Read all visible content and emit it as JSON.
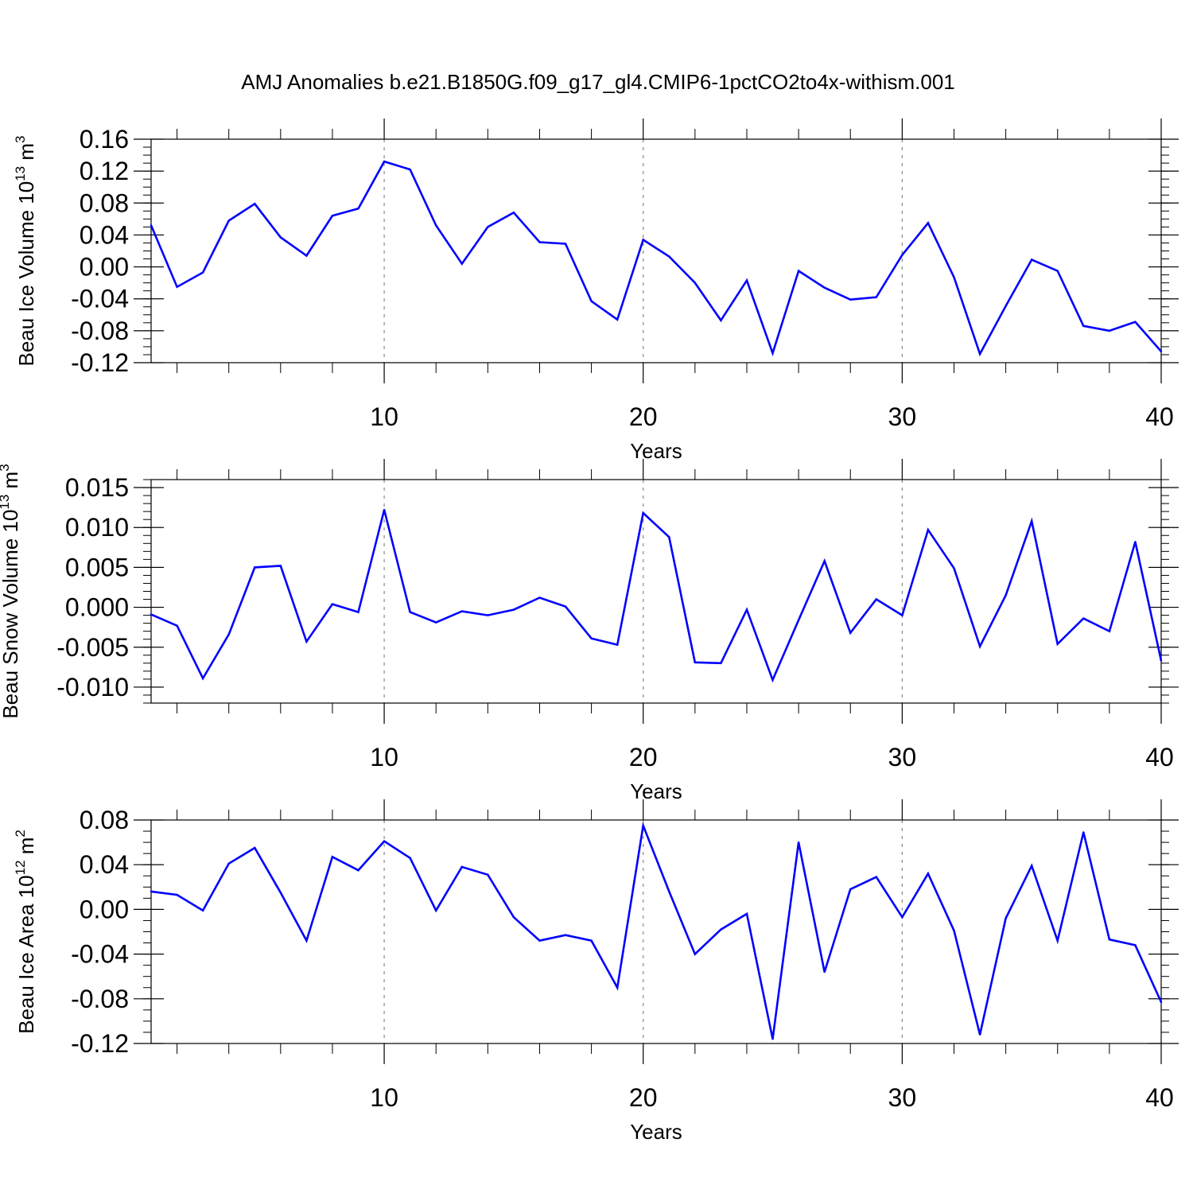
{
  "colors": {
    "line": "#0000ff",
    "axis": "#000000",
    "refline": "#888888"
  },
  "chart_data": [
    {
      "type": "line",
      "title": "AMJ Anomalies b.e21.B1850G.f09_g17_gl4.CMIP6-1pctCO2to4x-withism.001",
      "ylabel": {
        "text": "Beau Ice Volume 10",
        "exp": "13",
        "unit": " m",
        "unit_exp": "3"
      },
      "xlabel": "Years",
      "xlim": [
        1,
        40
      ],
      "ylim": [
        -0.12,
        0.16
      ],
      "yticks": [
        -0.12,
        -0.08,
        -0.04,
        0.0,
        0.04,
        0.08,
        0.12,
        0.16
      ],
      "ytick_labels": [
        "-0.12",
        "-0.08",
        "-0.04",
        "0.00",
        "0.04",
        "0.08",
        "0.12",
        "0.16"
      ],
      "yminor_step": 0.01,
      "xticks": [
        10,
        20,
        30,
        40
      ],
      "xtick_labels": [
        "10",
        "20",
        "30",
        "40"
      ],
      "xminor": [
        2,
        4,
        6,
        8,
        12,
        14,
        16,
        18,
        22,
        24,
        26,
        28,
        32,
        34,
        36,
        38
      ],
      "reflines": [
        10,
        20,
        30
      ],
      "x": [
        1,
        2,
        3,
        4,
        5,
        6,
        7,
        8,
        9,
        10,
        11,
        12,
        13,
        14,
        15,
        16,
        17,
        18,
        19,
        20,
        21,
        22,
        23,
        24,
        25,
        26,
        27,
        28,
        29,
        30,
        31,
        32,
        33,
        34,
        35,
        36,
        37,
        38,
        39,
        40
      ],
      "series": [
        {
          "values": [
            0.052,
            -0.025,
            -0.007,
            0.058,
            0.079,
            0.037,
            0.014,
            0.064,
            0.073,
            0.132,
            0.122,
            0.052,
            0.004,
            0.05,
            0.068,
            0.031,
            0.029,
            -0.043,
            -0.066,
            0.034,
            0.013,
            -0.02,
            -0.067,
            -0.017,
            -0.108,
            -0.005,
            -0.026,
            -0.041,
            -0.038,
            0.015,
            0.055,
            -0.013,
            -0.109,
            -0.049,
            0.009,
            -0.005,
            -0.074,
            -0.08,
            -0.069,
            -0.106
          ]
        }
      ]
    },
    {
      "type": "line",
      "ylabel": {
        "text": "Beau Snow Volume 10",
        "exp": "13",
        "unit": " m",
        "unit_exp": "3"
      },
      "xlabel": "Years",
      "xlim": [
        1,
        40
      ],
      "ylim": [
        -0.012,
        0.016
      ],
      "yticks": [
        -0.01,
        -0.005,
        0.0,
        0.005,
        0.01,
        0.015
      ],
      "ytick_labels": [
        "-0.010",
        "-0.005",
        "0.000",
        "0.005",
        "0.010",
        "0.015"
      ],
      "yminor_step": 0.001,
      "xticks": [
        10,
        20,
        30,
        40
      ],
      "xtick_labels": [
        "10",
        "20",
        "30",
        "40"
      ],
      "xminor": [
        2,
        4,
        6,
        8,
        12,
        14,
        16,
        18,
        22,
        24,
        26,
        28,
        32,
        34,
        36,
        38
      ],
      "reflines": [
        10,
        20,
        30
      ],
      "x": [
        1,
        2,
        3,
        4,
        5,
        6,
        7,
        8,
        9,
        10,
        11,
        12,
        13,
        14,
        15,
        16,
        17,
        18,
        19,
        20,
        21,
        22,
        23,
        24,
        25,
        26,
        27,
        28,
        29,
        30,
        31,
        32,
        33,
        34,
        35,
        36,
        37,
        38,
        39,
        40
      ],
      "series": [
        {
          "values": [
            -0.0009,
            -0.0023,
            -0.0089,
            -0.0034,
            0.005,
            0.0052,
            -0.0043,
            0.0004,
            -0.0006,
            0.0122,
            -0.0006,
            -0.0019,
            -0.0005,
            -0.001,
            -0.0003,
            0.0012,
            0.0001,
            -0.0039,
            -0.0047,
            0.0118,
            0.0088,
            -0.0069,
            -0.007,
            -0.0003,
            -0.0091,
            -0.0016,
            0.0058,
            -0.0032,
            0.001,
            -0.001,
            0.0097,
            0.0049,
            -0.0049,
            0.0015,
            0.0108,
            -0.0046,
            -0.0014,
            -0.003,
            0.0082,
            -0.0067
          ]
        }
      ]
    },
    {
      "type": "line",
      "ylabel": {
        "text": "Beau Ice Area 10",
        "exp": "12",
        "unit": " m",
        "unit_exp": "2"
      },
      "xlabel": "Years",
      "xlim": [
        1,
        40
      ],
      "ylim": [
        -0.12,
        0.08
      ],
      "yticks": [
        -0.12,
        -0.08,
        -0.04,
        0.0,
        0.04,
        0.08
      ],
      "ytick_labels": [
        "-0.12",
        "-0.08",
        "-0.04",
        "0.00",
        "0.04",
        "0.08"
      ],
      "yminor_step": 0.01,
      "xticks": [
        10,
        20,
        30,
        40
      ],
      "xtick_labels": [
        "10",
        "20",
        "30",
        "40"
      ],
      "xminor": [
        2,
        4,
        6,
        8,
        12,
        14,
        16,
        18,
        22,
        24,
        26,
        28,
        32,
        34,
        36,
        38
      ],
      "reflines": [
        10,
        20,
        30
      ],
      "x": [
        1,
        2,
        3,
        4,
        5,
        6,
        7,
        8,
        9,
        10,
        11,
        12,
        13,
        14,
        15,
        16,
        17,
        18,
        19,
        20,
        21,
        22,
        23,
        24,
        25,
        26,
        27,
        28,
        29,
        30,
        31,
        32,
        33,
        34,
        35,
        36,
        37,
        38,
        39,
        40
      ],
      "series": [
        {
          "values": [
            0.016,
            0.013,
            -0.001,
            0.041,
            0.055,
            0.015,
            -0.028,
            0.047,
            0.035,
            0.061,
            0.046,
            -0.001,
            0.038,
            0.031,
            -0.007,
            -0.028,
            -0.023,
            -0.028,
            -0.07,
            0.075,
            0.016,
            -0.04,
            -0.018,
            -0.004,
            -0.116,
            0.06,
            -0.056,
            0.018,
            0.029,
            -0.007,
            0.032,
            -0.019,
            -0.112,
            -0.008,
            0.039,
            -0.028,
            0.069,
            -0.027,
            -0.032,
            -0.083
          ]
        }
      ]
    }
  ]
}
